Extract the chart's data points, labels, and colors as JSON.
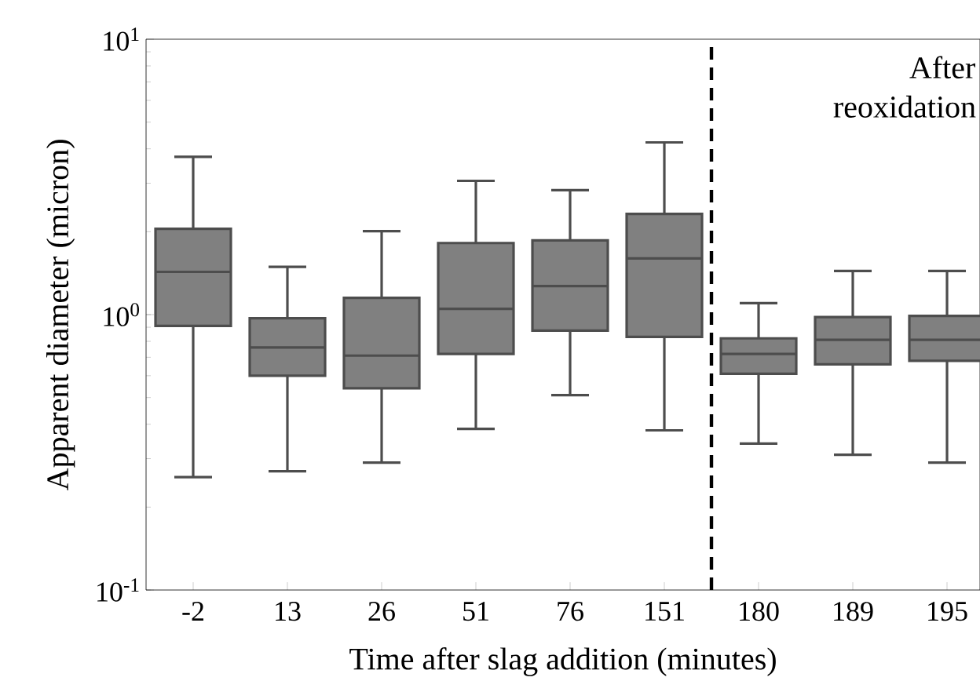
{
  "chart_data": {
    "type": "box",
    "xlabel": "Time after slag addition (minutes)",
    "ylabel": "Apparent diameter (micron)",
    "categories": [
      "-2",
      "13",
      "26",
      "51",
      "76",
      "151",
      "180",
      "189",
      "195"
    ],
    "log": "y",
    "ylim": [
      0.1,
      10
    ],
    "yticks": [
      {
        "value": 0.1,
        "label": "10$^{-1}$"
      },
      {
        "value": 1,
        "label": "10$^{0}$"
      },
      {
        "value": 10,
        "label": "10$^{1}$"
      }
    ],
    "grid": false,
    "series": [
      {
        "color": "#808080",
        "boxes": [
          {
            "low": 0.257,
            "q1": 0.91,
            "median": 1.43,
            "q3": 2.05,
            "high": 3.74
          },
          {
            "low": 0.27,
            "q1": 0.6,
            "median": 0.76,
            "q3": 0.97,
            "high": 1.49
          },
          {
            "low": 0.29,
            "q1": 0.54,
            "median": 0.71,
            "q3": 1.15,
            "high": 2.01
          },
          {
            "low": 0.385,
            "q1": 0.72,
            "median": 1.05,
            "q3": 1.82,
            "high": 3.06
          },
          {
            "low": 0.51,
            "q1": 0.875,
            "median": 1.27,
            "q3": 1.86,
            "high": 2.83
          },
          {
            "low": 0.38,
            "q1": 0.83,
            "median": 1.6,
            "q3": 2.32,
            "high": 4.22
          },
          {
            "low": 0.34,
            "q1": 0.61,
            "median": 0.72,
            "q3": 0.82,
            "high": 1.1
          },
          {
            "low": 0.31,
            "q1": 0.66,
            "median": 0.81,
            "q3": 0.98,
            "high": 1.44
          },
          {
            "low": 0.29,
            "q1": 0.68,
            "median": 0.81,
            "q3": 0.99,
            "high": 1.44
          }
        ]
      }
    ],
    "annotations": [
      "After reoxidation"
    ]
  }
}
